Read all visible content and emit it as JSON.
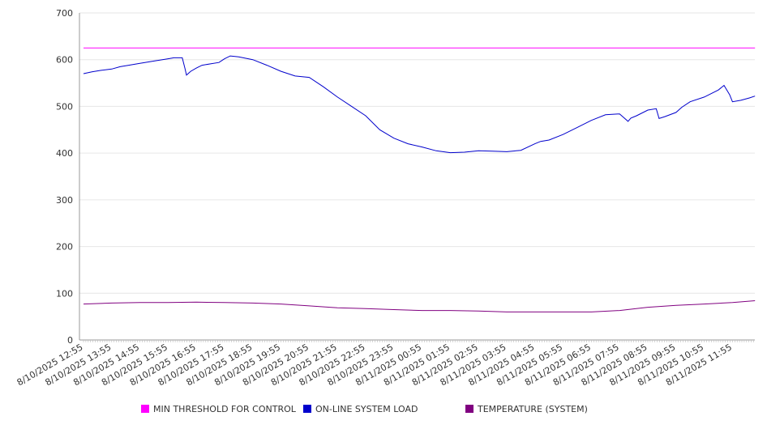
{
  "chart_data": {
    "type": "line",
    "ylim": [
      0,
      700
    ],
    "yticks": [
      "0",
      "100",
      "200",
      "300",
      "400",
      "500",
      "600",
      "700"
    ],
    "xticks": [
      "8/10/2025 12:55",
      "8/10/2025 13:55",
      "8/10/2025 14:55",
      "8/10/2025 15:55",
      "8/10/2025 16:55",
      "8/10/2025 17:55",
      "8/10/2025 18:55",
      "8/10/2025 19:55",
      "8/10/2025 20:55",
      "8/10/2025 21:55",
      "8/10/2025 22:55",
      "8/10/2025 23:55",
      "8/11/2025 00:55",
      "8/11/2025 01:55",
      "8/11/2025 02:55",
      "8/11/2025 03:55",
      "8/11/2025 04:55",
      "8/11/2025 05:55",
      "8/11/2025 06:55",
      "8/11/2025 07:55",
      "8/11/2025 08:55",
      "8/11/2025 09:55",
      "8/11/2025 10:55",
      "8/11/2025 11:55"
    ],
    "grid": true,
    "legend_position": "bottom",
    "series": [
      {
        "name": "MIN THRESHOLD FOR CONTROL",
        "color": "#ff00ff",
        "x": [
          0,
          23.8
        ],
        "y": [
          625,
          625
        ]
      },
      {
        "name": "ON-LINE SYSTEM LOAD",
        "color": "#0000cc",
        "x": [
          0,
          0.3,
          0.6,
          1.0,
          1.3,
          1.6,
          2.0,
          2.5,
          3.0,
          3.2,
          3.5,
          3.6,
          3.65,
          3.8,
          4.0,
          4.2,
          4.5,
          4.8,
          5.0,
          5.2,
          5.5,
          6.0,
          6.5,
          7.0,
          7.5,
          8.0,
          8.5,
          9.0,
          9.5,
          10.0,
          10.3,
          10.5,
          11.0,
          11.5,
          12.0,
          12.5,
          13.0,
          13.5,
          14.0,
          14.5,
          15.0,
          15.5,
          16.0,
          16.2,
          16.5,
          17.0,
          17.5,
          18.0,
          18.5,
          19.0,
          19.3,
          19.4,
          19.6,
          20.0,
          20.3,
          20.4,
          20.6,
          21.0,
          21.2,
          21.5,
          22.0,
          22.5,
          22.7,
          22.9,
          23.0,
          23.3,
          23.6,
          23.8
        ],
        "y": [
          570,
          574,
          577,
          580,
          585,
          588,
          592,
          597,
          602,
          604,
          604,
          580,
          567,
          575,
          582,
          588,
          591,
          594,
          602,
          608,
          606,
          600,
          588,
          575,
          565,
          562,
          542,
          520,
          500,
          480,
          462,
          450,
          432,
          420,
          413,
          405,
          401,
          402,
          405,
          404,
          403,
          406,
          420,
          425,
          428,
          440,
          455,
          470,
          482,
          484,
          468,
          475,
          480,
          492,
          495,
          474,
          478,
          487,
          498,
          510,
          520,
          535,
          545,
          525,
          510,
          513,
          518,
          522
        ]
      },
      {
        "name": "TEMPERATURE (SYSTEM)",
        "color": "#800080",
        "x": [
          0,
          1,
          2,
          3,
          4,
          5,
          6,
          7,
          8,
          9,
          10,
          11,
          12,
          13,
          14,
          15,
          16,
          17,
          18,
          19,
          20,
          21,
          22,
          23,
          23.8
        ],
        "y": [
          77,
          79,
          80,
          80,
          81,
          80,
          79,
          77,
          73,
          69,
          67,
          65,
          63,
          63,
          62,
          60,
          60,
          60,
          60,
          63,
          70,
          74,
          77,
          80,
          84
        ]
      }
    ]
  }
}
